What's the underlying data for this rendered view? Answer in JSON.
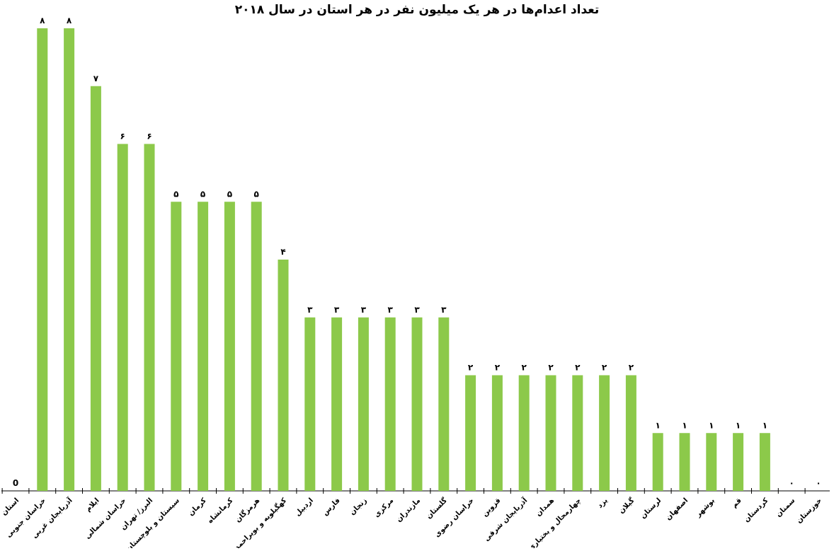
{
  "chart_data": {
    "type": "bar",
    "title": "تعداد اعدام‌ها در هر یک میلیون نفر در هر استان در سال ۲۰۱۸",
    "xlabel": "",
    "ylabel": "",
    "ylim": [
      0,
      8
    ],
    "grid": false,
    "legend": "none",
    "bar_color": "#8cc94a",
    "categories": [
      "استان",
      "خراسان جنوبی",
      "آذربایجان غربی",
      "ایلام",
      "خراسان شمالی",
      "البرز/ تهران",
      "سیستان و بلوچستان",
      "کرمان",
      "کرمانشاه",
      "هرمزگان",
      "کهگیلویه و بویراحمد",
      "اردبیل",
      "فارس",
      "زنجان",
      "مرکزی",
      "مازندران",
      "گلستان",
      "خراسان رضوی",
      "قزوین",
      "آذربایجان شرقی",
      "همدان",
      "چهارمحال و بختیاری",
      "یزد",
      "گیلان",
      "لرستان",
      "اصفهان",
      "بوشهر",
      "قم",
      "کردستان",
      "سمنان",
      "خوزستان"
    ],
    "values": [
      0,
      8,
      8,
      7,
      6,
      6,
      5,
      5,
      5,
      5,
      4,
      3,
      3,
      3,
      3,
      3,
      3,
      2,
      2,
      2,
      2,
      2,
      2,
      2,
      1,
      1,
      1,
      1,
      1,
      0,
      0
    ],
    "value_labels": [
      "0",
      "۸",
      "۸",
      "۷",
      "۶",
      "۶",
      "۵",
      "۵",
      "۵",
      "۵",
      "۴",
      "۳",
      "۳",
      "۳",
      "۳",
      "۳",
      "۳",
      "۲",
      "۲",
      "۲",
      "۲",
      "۲",
      "۲",
      "۲",
      "۱",
      "۱",
      "۱",
      "۱",
      "۱",
      "۰",
      "۰"
    ]
  }
}
